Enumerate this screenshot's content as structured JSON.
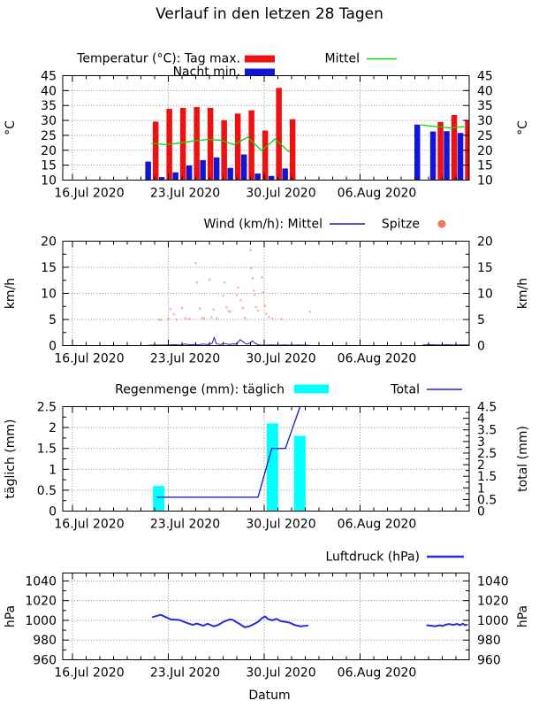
{
  "title": "Verlauf in den letzen 28 Tagen",
  "x_axis": {
    "label": "Datum",
    "tick_labels": [
      "16.Jul 2020",
      "23.Jul 2020",
      "30.Jul 2020",
      "06.Aug 2020"
    ],
    "tick_days": [
      0,
      7,
      14,
      21
    ],
    "day_span": 29
  },
  "chart_data": [
    {
      "name": "temperature",
      "type": "bar",
      "legend": {
        "bars_label": "Temperatur (°C): Tag max.",
        "mean_label": "Mittel",
        "night_label": "Nacht min."
      },
      "ylabel_left": "°C",
      "ylabel_right": "°C",
      "ylim": [
        10,
        45
      ],
      "ytick_step": 5,
      "ytick_labels": [
        "10",
        "15",
        "20",
        "25",
        "30",
        "35",
        "40",
        "45"
      ],
      "colors": {
        "day_max": "#ee1111",
        "night_min": "#1414d6",
        "mean": "#00dd00"
      },
      "bars": [
        {
          "date": "22.Jul",
          "day": 5.8,
          "night_min": 16.2,
          "day_max": 29.6
        },
        {
          "date": "23.Jul",
          "day": 6.8,
          "night_min": 11.0,
          "day_max": 33.9
        },
        {
          "date": "24.Jul",
          "day": 7.8,
          "night_min": 12.6,
          "day_max": 34.2
        },
        {
          "date": "25.Jul",
          "day": 8.8,
          "night_min": 14.9,
          "day_max": 34.5
        },
        {
          "date": "26.Jul",
          "day": 9.8,
          "night_min": 16.7,
          "day_max": 34.2
        },
        {
          "date": "27.Jul",
          "day": 10.8,
          "night_min": 17.6,
          "day_max": 30.1
        },
        {
          "date": "28.Jul",
          "day": 11.8,
          "night_min": 14.1,
          "day_max": 32.3
        },
        {
          "date": "29.Jul",
          "day": 12.8,
          "night_min": 18.6,
          "day_max": 33.4
        },
        {
          "date": "30.Jul",
          "day": 13.8,
          "night_min": 12.2,
          "day_max": 26.6
        },
        {
          "date": "31.Jul",
          "day": 14.8,
          "night_min": 11.4,
          "day_max": 40.9
        },
        {
          "date": "01.Aug",
          "day": 15.8,
          "night_min": 13.9,
          "day_max": 30.4
        },
        {
          "date": "10.Aug",
          "day": 25.45,
          "night_min": 28.6,
          "day_max": null
        },
        {
          "date": "11.Aug",
          "day": 26.6,
          "night_min": 26.3,
          "day_max": 29.5
        },
        {
          "date": "12.Aug",
          "day": 27.6,
          "night_min": 26.4,
          "day_max": 31.8
        },
        {
          "date": "13.Aug",
          "day": 28.6,
          "night_min": 25.8,
          "day_max": 29.9
        }
      ],
      "mean_segments": [
        [
          [
            5.8,
            22.3
          ],
          [
            6.8,
            21.9
          ],
          [
            7.8,
            22.4
          ],
          [
            8.8,
            23.1
          ],
          [
            9.8,
            23.6
          ],
          [
            10.8,
            23.4
          ],
          [
            11.8,
            21.9
          ],
          [
            12.8,
            24.4
          ],
          [
            13.8,
            19.9
          ],
          [
            14.8,
            23.8
          ],
          [
            15.8,
            19.5
          ]
        ],
        [
          [
            25.45,
            28.5
          ],
          [
            26.6,
            27.9
          ],
          [
            27.6,
            27.5
          ],
          [
            28.6,
            27.9
          ]
        ]
      ]
    },
    {
      "name": "wind",
      "type": "line+scatter",
      "legend": {
        "mean_label": "Wind (km/h): Mittel",
        "peak_label": "Spitze"
      },
      "ylabel_left": "km/h",
      "ylabel_right": "km/h",
      "ylim": [
        0,
        20
      ],
      "ytick_step": 5,
      "yminor_step": 2.5,
      "ytick_labels": [
        "0",
        "5",
        "10",
        "15",
        "20"
      ],
      "colors": {
        "mean": "#1f1f9e",
        "peak": "#f4795c"
      },
      "mean_segments": [
        [
          [
            5.5,
            0.05
          ],
          [
            6,
            0.1
          ],
          [
            6.5,
            0.08
          ],
          [
            7,
            0.12
          ],
          [
            7.5,
            0.18
          ],
          [
            7.9,
            0.1
          ],
          [
            8.2,
            0.32
          ],
          [
            8.5,
            0.15
          ],
          [
            8.9,
            0.22
          ],
          [
            9.2,
            0.12
          ],
          [
            9.5,
            0.3
          ],
          [
            9.9,
            0.2
          ],
          [
            10.2,
            0.45
          ],
          [
            10.35,
            1.6
          ],
          [
            10.5,
            0.35
          ],
          [
            10.8,
            0.2
          ],
          [
            11.1,
            0.42
          ],
          [
            11.4,
            0.22
          ],
          [
            11.7,
            0.32
          ],
          [
            12.0,
            0.3
          ],
          [
            12.25,
            1.15
          ],
          [
            12.45,
            0.75
          ],
          [
            12.7,
            0.3
          ],
          [
            12.95,
            0.45
          ],
          [
            13.15,
            0.9
          ],
          [
            13.35,
            0.4
          ],
          [
            13.6,
            0.12
          ],
          [
            14,
            0.06
          ],
          [
            14.5,
            0.12
          ],
          [
            15,
            0.06
          ],
          [
            15.5,
            0.12
          ],
          [
            16,
            0.06
          ],
          [
            16.5,
            0.1
          ],
          [
            17.3,
            0.05
          ]
        ],
        [
          [
            25.6,
            0.12
          ],
          [
            26.2,
            0.18
          ],
          [
            26.8,
            0.1
          ],
          [
            27.4,
            0.16
          ],
          [
            28,
            0.1
          ],
          [
            28.6,
            0.15
          ],
          [
            29,
            0.1
          ]
        ]
      ],
      "peak_points": [
        [
          6.3,
          5.0
        ],
        [
          6.45,
          4.9
        ],
        [
          7.0,
          5.1
        ],
        [
          7.15,
          7.0
        ],
        [
          7.4,
          6.0
        ],
        [
          7.6,
          5.0
        ],
        [
          8.0,
          7.2
        ],
        [
          8.25,
          5.2
        ],
        [
          8.55,
          5.1
        ],
        [
          9.0,
          15.8
        ],
        [
          9.1,
          12.1
        ],
        [
          9.3,
          7.1
        ],
        [
          9.45,
          5.3
        ],
        [
          9.6,
          5.2
        ],
        [
          10.0,
          12.6
        ],
        [
          10.15,
          5.4
        ],
        [
          10.3,
          6.9
        ],
        [
          10.55,
          5.2
        ],
        [
          11.0,
          9.6
        ],
        [
          11.1,
          12.1
        ],
        [
          11.25,
          7.3
        ],
        [
          11.4,
          6.6
        ],
        [
          11.55,
          6.5
        ],
        [
          12.0,
          9.7
        ],
        [
          12.1,
          11.1
        ],
        [
          12.3,
          8.7
        ],
        [
          12.45,
          7.2
        ],
        [
          12.6,
          5.3
        ],
        [
          13.0,
          18.3
        ],
        [
          13.05,
          14.8
        ],
        [
          13.15,
          12.9
        ],
        [
          13.25,
          10.5
        ],
        [
          13.3,
          9.7
        ],
        [
          13.4,
          7.4
        ],
        [
          13.55,
          6.7
        ],
        [
          13.85,
          13.1
        ],
        [
          13.95,
          10.2
        ],
        [
          14.05,
          7.6
        ],
        [
          14.15,
          6.1
        ],
        [
          14.35,
          5.5
        ],
        [
          14.6,
          5.2
        ],
        [
          15.25,
          5.1
        ],
        [
          17.35,
          6.5
        ]
      ]
    },
    {
      "name": "rain",
      "type": "bar+line",
      "legend": {
        "daily_label": "Regenmenge (mm): täglich",
        "total_label": "Total"
      },
      "ylabel_left": "täglich (mm)",
      "ylabel_right": "total (mm)",
      "ylim_left": [
        0,
        2.5
      ],
      "ylim_right": [
        0,
        4.5
      ],
      "ytick_step": 0.5,
      "yminor_step": 0.25,
      "ytick_labels_left": [
        "0",
        "0.5",
        "1",
        "1.5",
        "2",
        "2.5"
      ],
      "ytick_labels_right": [
        "0",
        "0.5",
        "1",
        "1.5",
        "2",
        "2.5",
        "3",
        "3.5",
        "4",
        "4.5"
      ],
      "colors": {
        "daily": "#00ffff",
        "total": "#2222cc"
      },
      "bars": [
        [
          6.3,
          0.6
        ],
        [
          14.6,
          2.1
        ],
        [
          16.6,
          1.8
        ]
      ],
      "total_line": [
        [
          6.2,
          0.6
        ],
        [
          13.55,
          0.6
        ],
        [
          14.55,
          2.7
        ],
        [
          15.55,
          2.7
        ],
        [
          16.65,
          4.55
        ]
      ]
    },
    {
      "name": "pressure",
      "type": "line",
      "legend": {
        "label": "Luftdruck (hPa)"
      },
      "ylabel_left": "hPa",
      "ylabel_right": "hPa",
      "ylim": [
        960,
        1048
      ],
      "ytick_step": 20,
      "yminor_step": 10,
      "ytick_labels": [
        "960",
        "980",
        "1000",
        "1020",
        "1040"
      ],
      "colors": {
        "line": "#2b2bd5"
      },
      "segments": [
        [
          [
            5.87,
            1003.4
          ],
          [
            6.45,
            1005.6
          ],
          [
            7.16,
            1001.0
          ],
          [
            7.81,
            1000.4
          ],
          [
            8.26,
            997.9
          ],
          [
            8.77,
            995.4
          ],
          [
            9.1,
            996.7
          ],
          [
            9.55,
            994.5
          ],
          [
            9.87,
            996.6
          ],
          [
            10.32,
            993.9
          ],
          [
            10.65,
            995.4
          ],
          [
            11.03,
            998.5
          ],
          [
            11.48,
            1000.9
          ],
          [
            11.68,
            1000.6
          ],
          [
            12.13,
            996.9
          ],
          [
            12.58,
            993.0
          ],
          [
            12.9,
            993.9
          ],
          [
            13.23,
            996.0
          ],
          [
            13.55,
            998.5
          ],
          [
            13.87,
            1002.5
          ],
          [
            14.06,
            1004.0
          ],
          [
            14.26,
            1001.5
          ],
          [
            14.58,
            1000.0
          ],
          [
            14.9,
            1001.5
          ],
          [
            15.23,
            999.1
          ],
          [
            15.55,
            998.5
          ],
          [
            15.87,
            997.6
          ],
          [
            16.19,
            995.4
          ],
          [
            16.65,
            993.9
          ],
          [
            16.97,
            994.4
          ],
          [
            17.16,
            994.7
          ]
        ],
        [
          [
            25.9,
            995.0
          ],
          [
            26.2,
            994.5
          ],
          [
            26.5,
            994.0
          ],
          [
            26.8,
            995.0
          ],
          [
            27.0,
            994.3
          ],
          [
            27.3,
            995.8
          ],
          [
            27.5,
            996.2
          ],
          [
            27.8,
            995.5
          ],
          [
            28.1,
            996.3
          ],
          [
            28.3,
            995.2
          ],
          [
            28.5,
            996.5
          ],
          [
            28.7,
            995.0
          ],
          [
            28.8,
            995.5
          ]
        ]
      ]
    }
  ]
}
